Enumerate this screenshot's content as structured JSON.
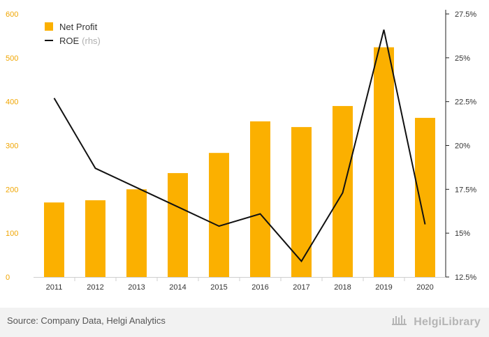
{
  "chart_data": {
    "type": "bar",
    "categories": [
      "2011",
      "2012",
      "2013",
      "2014",
      "2015",
      "2016",
      "2017",
      "2018",
      "2019",
      "2020"
    ],
    "series": [
      {
        "name": "Net Profit",
        "type": "bar",
        "axis": "left",
        "color": "#FBB000",
        "values": [
          170,
          175,
          200,
          237,
          283,
          355,
          342,
          390,
          524,
          363
        ]
      },
      {
        "name": "ROE",
        "type": "line",
        "axis": "right",
        "color": "#111111",
        "values": [
          22.7,
          18.7,
          17.6,
          16.5,
          15.4,
          16.1,
          13.4,
          17.3,
          26.6,
          15.5
        ]
      }
    ],
    "ylim_left": [
      0,
      600
    ],
    "yticks_left": [
      "0",
      "100",
      "200",
      "300",
      "400",
      "500",
      "600"
    ],
    "ylim_right": [
      12.5,
      27.5
    ],
    "yticks_right": [
      "12.5%",
      "15%",
      "17.5%",
      "20%",
      "22.5%",
      "25%",
      "27.5%"
    ],
    "legend": {
      "bar_label": "Net Profit",
      "line_label": "ROE",
      "line_suffix": "(rhs)",
      "placement": "top-left"
    },
    "grid": false
  },
  "footer": {
    "source": "Source: Company Data, Helgi Analytics",
    "brand": "HelgiLibrary"
  }
}
